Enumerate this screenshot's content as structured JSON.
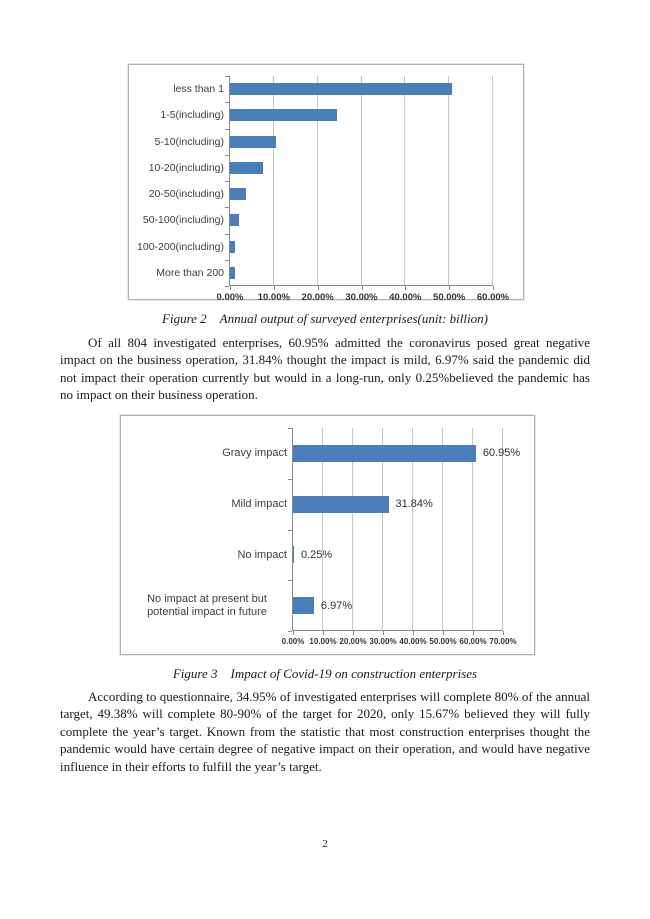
{
  "page": {
    "number": "2"
  },
  "captions": {
    "figure2": "Figure 2 Annual output of surveyed enterprises(unit: billion)",
    "figure3": "Figure 3 Impact of Covid-19 on construction enterprises"
  },
  "paragraphs": {
    "p1": "Of all 804 investigated enterprises, 60.95% admitted the coronavirus posed great negative impact on the business operation, 31.84% thought the impact is mild, 6.97% said the pandemic did not impact their operation currently but would in a long-run, only 0.25%believed the pandemic has no impact on their business operation.",
    "p2": "According to questionnaire, 34.95% of investigated enterprises will complete 80% of the annual target, 49.38% will complete 80-90% of the target for 2020, only 15.67% believed they will fully complete the year’s target. Known from the statistic that most construction enterprises thought the pandemic would have certain degree of negative impact on their operation, and would have negative influence in their efforts to fulfill the year’s target."
  },
  "chart_data": [
    {
      "type": "bar",
      "orientation": "horizontal",
      "title": "Annual output of surveyed enterprises (unit: billion)",
      "categories": [
        "less than 1",
        "1-5(including)",
        "5-10(including)",
        "10-20(including)",
        "20-50(including)",
        "50-100(including)",
        "100-200(including)",
        "More than 200"
      ],
      "values": [
        50.6,
        24.4,
        10.5,
        7.5,
        3.6,
        2.0,
        1.2,
        1.2
      ],
      "xlabel": "",
      "ylabel": "",
      "xlim": [
        0,
        60
      ],
      "tick_labels": [
        "0.00%",
        "10.00%",
        "20.00%",
        "30.00%",
        "40.00%",
        "50.00%",
        "60.00%"
      ],
      "grid": true,
      "legend": false,
      "data_labels": false,
      "bar_color": "#4a7ebb"
    },
    {
      "type": "bar",
      "orientation": "horizontal",
      "title": "Impact of Covid-19 on construction enterprises",
      "categories": [
        "Gravy impact",
        "Mild impact",
        "No impact",
        "No impact at present but potential impact in future"
      ],
      "values": [
        60.95,
        31.84,
        0.25,
        6.97
      ],
      "data_label_texts": [
        "60.95%",
        "31.84%",
        "0.25%",
        "6.97%"
      ],
      "xlabel": "",
      "ylabel": "",
      "xlim": [
        0,
        70
      ],
      "tick_labels": [
        "0.00%",
        "10.00%",
        "20.00%",
        "30.00%",
        "40.00%",
        "50.00%",
        "60.00%",
        "70.00%"
      ],
      "grid": true,
      "legend": false,
      "data_labels": true,
      "bar_color": "#4a7ebb"
    }
  ]
}
